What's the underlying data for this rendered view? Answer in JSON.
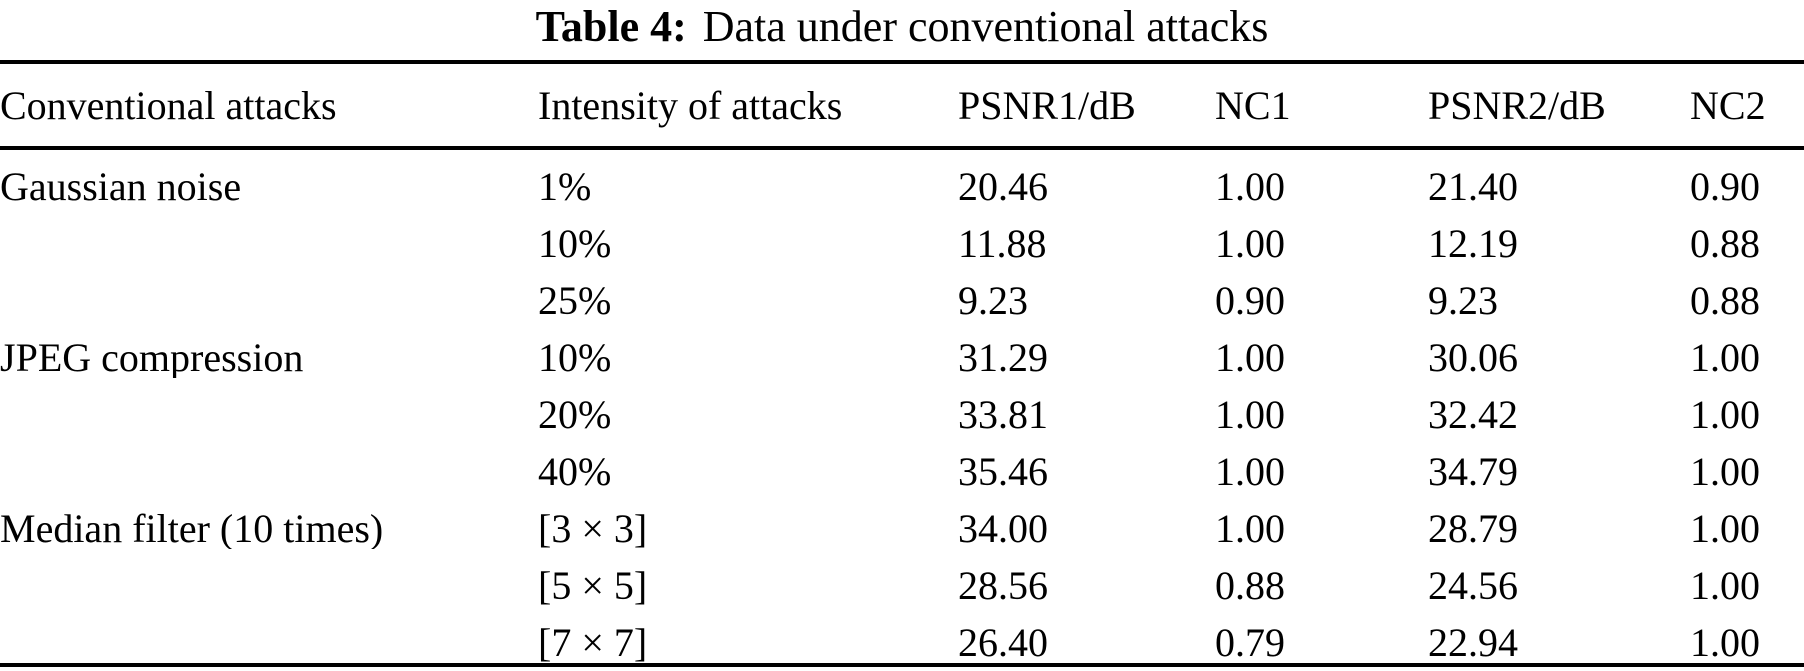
{
  "caption": {
    "label": "Table 4:",
    "text": "Data under conventional attacks"
  },
  "table": {
    "columns": [
      "Conventional attacks",
      "Intensity of attacks",
      "PSNR1/dB",
      "NC1",
      "PSNR2/dB",
      "NC2"
    ],
    "row_keys": [
      "attack",
      "intensity",
      "psnr1",
      "nc1",
      "psnr2",
      "nc2"
    ],
    "rows": [
      {
        "attack": "Gaussian noise",
        "intensity": "1%",
        "psnr1": "20.46",
        "nc1": "1.00",
        "psnr2": "21.40",
        "nc2": "0.90"
      },
      {
        "attack": "",
        "intensity": "10%",
        "psnr1": "11.88",
        "nc1": "1.00",
        "psnr2": "12.19",
        "nc2": "0.88"
      },
      {
        "attack": "",
        "intensity": "25%",
        "psnr1": "9.23",
        "nc1": "0.90",
        "psnr2": "9.23",
        "nc2": "0.88"
      },
      {
        "attack": "JPEG compression",
        "intensity": "10%",
        "psnr1": "31.29",
        "nc1": "1.00",
        "psnr2": "30.06",
        "nc2": "1.00"
      },
      {
        "attack": "",
        "intensity": "20%",
        "psnr1": "33.81",
        "nc1": "1.00",
        "psnr2": "32.42",
        "nc2": "1.00"
      },
      {
        "attack": "",
        "intensity": "40%",
        "psnr1": "35.46",
        "nc1": "1.00",
        "psnr2": "34.79",
        "nc2": "1.00"
      },
      {
        "attack": "Median filter (10 times)",
        "intensity": "[3 × 3]",
        "psnr1": "34.00",
        "nc1": "1.00",
        "psnr2": "28.79",
        "nc2": "1.00"
      },
      {
        "attack": "",
        "intensity": "[5 × 5]",
        "psnr1": "28.56",
        "nc1": "0.88",
        "psnr2": "24.56",
        "nc2": "1.00"
      },
      {
        "attack": "",
        "intensity": "[7 × 7]",
        "psnr1": "26.40",
        "nc1": "0.79",
        "psnr2": "22.94",
        "nc2": "1.00"
      }
    ]
  },
  "colors": {
    "text": "#000000",
    "background": "#ffffff",
    "rule": "#000000"
  }
}
